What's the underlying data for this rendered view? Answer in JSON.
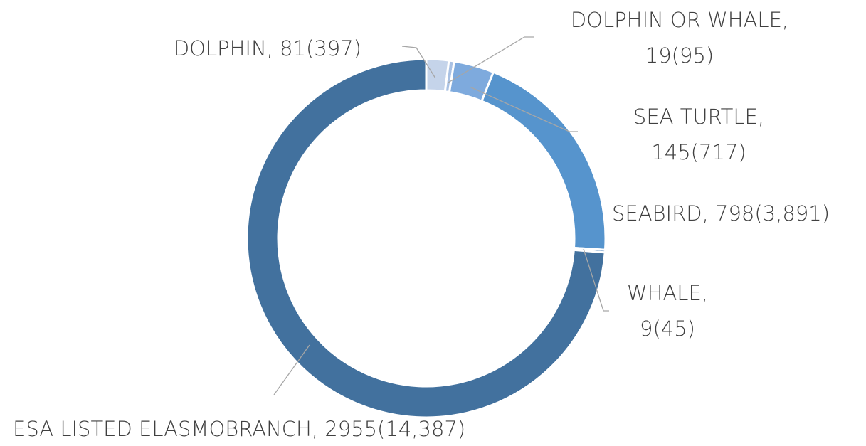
{
  "chart_data": {
    "type": "donut",
    "labels": [
      [
        "DOLPHIN, 81(397)"
      ],
      [
        "DOLPHIN OR WHALE,",
        "19(95)"
      ],
      [
        "SEA TURTLE,",
        "145(717)"
      ],
      [
        "SEABIRD, 798(3,891)"
      ],
      [
        "WHALE,",
        "9(45)"
      ],
      [
        "ESA LISTED ELASMOBRANCH, 2955(14,387)"
      ]
    ],
    "values": [
      81,
      19,
      145,
      798,
      9,
      2955
    ],
    "colors": [
      "#c5d4ea",
      "#a9c1e3",
      "#7eaadd",
      "#5694cd",
      "#4d83bb",
      "#42719e"
    ]
  }
}
